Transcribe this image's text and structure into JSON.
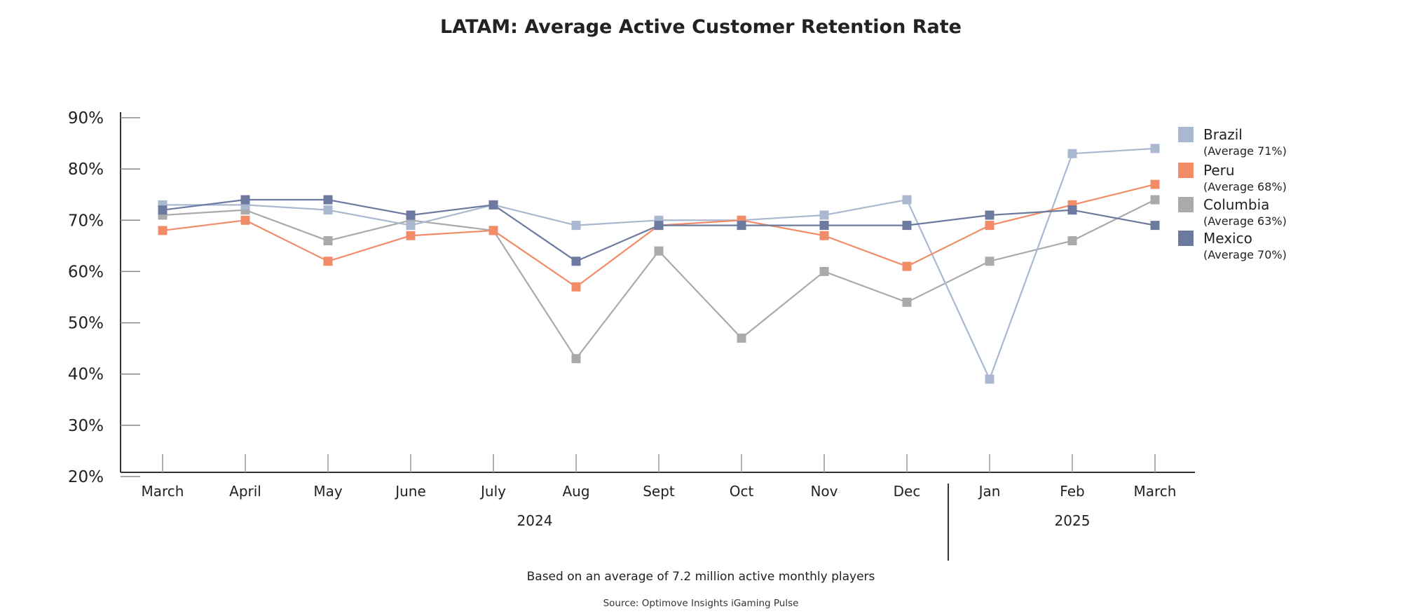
{
  "chart_data": {
    "type": "line",
    "title": "LATAM: Average Active Customer Retention Rate",
    "xlabel": "",
    "ylabel": "",
    "ylim": [
      20,
      90
    ],
    "yticks": [
      "20%",
      "30%",
      "40%",
      "50%",
      "60%",
      "70%",
      "80%",
      "90%"
    ],
    "categories": [
      "March",
      "April",
      "May",
      "June",
      "July",
      "Aug",
      "Sept",
      "Oct",
      "Nov",
      "Dec",
      "Jan",
      "Feb",
      "March"
    ],
    "year_groups": [
      {
        "label": "2024",
        "start": 0,
        "end": 9
      },
      {
        "label": "2025",
        "start": 10,
        "end": 12
      }
    ],
    "series": [
      {
        "name": "Brazil",
        "average_label": "(Average 71%)",
        "color": "#a9b8cf",
        "values": [
          73,
          73,
          72,
          69,
          73,
          69,
          70,
          70,
          71,
          74,
          39,
          83,
          84
        ]
      },
      {
        "name": "Peru",
        "average_label": "(Average 68%)",
        "color": "#f28b68",
        "values": [
          68,
          70,
          62,
          67,
          68,
          57,
          69,
          70,
          67,
          61,
          69,
          73,
          77
        ]
      },
      {
        "name": "Columbia",
        "average_label": "(Average 63%)",
        "color": "#aaaaaa",
        "values": [
          71,
          72,
          66,
          70,
          68,
          43,
          64,
          47,
          60,
          54,
          62,
          66,
          74
        ]
      },
      {
        "name": "Mexico",
        "average_label": "(Average 70%)",
        "color": "#6b7a9e",
        "values": [
          72,
          74,
          74,
          71,
          73,
          62,
          69,
          69,
          69,
          69,
          71,
          72,
          69
        ]
      }
    ],
    "legend_position": "right",
    "note": "Based on an average of 7.2 million active monthly players",
    "source": "Source: Optimove Insights iGaming Pulse"
  }
}
